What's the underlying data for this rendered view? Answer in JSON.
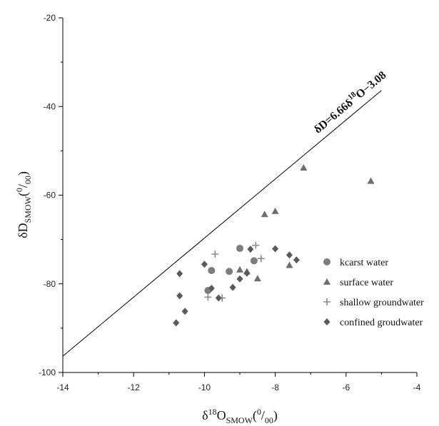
{
  "chart_data": {
    "type": "scatter",
    "xlim": [
      -14,
      -4
    ],
    "ylim": [
      -100,
      -20
    ],
    "x_ticks": [
      -14,
      -12,
      -10,
      -8,
      -6,
      -4
    ],
    "y_ticks": [
      -100,
      -80,
      -60,
      -40,
      -20
    ],
    "x_tick_labels": [
      "-14",
      "-12",
      "-10",
      "-8",
      "-6",
      "-4"
    ],
    "y_tick_labels": [
      "-100",
      "-80",
      "-60",
      "-40",
      "-20"
    ],
    "xlabel": {
      "main": "δ",
      "sup": "18",
      "base": "O",
      "sub": "SMOW",
      "unit_open": "(",
      "unit_sup": "0",
      "unit_slash": "/",
      "unit_sub": "00",
      "unit_close": ")"
    },
    "ylabel": {
      "main": "δD",
      "sub": "SMOW",
      "unit_open": "(",
      "unit_sup": "0",
      "unit_slash": "/",
      "unit_sub": "00",
      "unit_close": ")"
    },
    "grid": false,
    "legend_position": "right",
    "line": {
      "label_main": "δD=6.66δ",
      "label_sup": "18",
      "label_tail": "O−3.08",
      "slope": 6.66,
      "intercept": -3.08,
      "x_range": [
        -14,
        -5
      ]
    },
    "series": [
      {
        "name": "kcarst water",
        "marker": "circle",
        "color": "#7d7d7d",
        "points": [
          [
            -9.0,
            -72.0
          ],
          [
            -8.6,
            -74.8
          ],
          [
            -9.8,
            -77.0
          ],
          [
            -9.3,
            -77.2
          ],
          [
            -9.9,
            -81.5
          ]
        ]
      },
      {
        "name": "surface water",
        "marker": "triangle",
        "color": "#6e6e6e",
        "points": [
          [
            -7.2,
            -53.8
          ],
          [
            -5.3,
            -56.8
          ],
          [
            -8.3,
            -64.3
          ],
          [
            -8.0,
            -63.6
          ],
          [
            -9.0,
            -76.8
          ],
          [
            -8.8,
            -77.2
          ],
          [
            -8.5,
            -78.8
          ],
          [
            -7.6,
            -75.8
          ]
        ]
      },
      {
        "name": "shallow groundwater",
        "marker": "plus",
        "color": "#8a8a8a",
        "points": [
          [
            -9.7,
            -73.3
          ],
          [
            -8.55,
            -71.3
          ],
          [
            -8.4,
            -74.3
          ],
          [
            -9.9,
            -83.0
          ],
          [
            -9.5,
            -83.2
          ]
        ]
      },
      {
        "name": "confined groudwater",
        "marker": "diamond",
        "color": "#5a5a5a",
        "points": [
          [
            -8.7,
            -72.2
          ],
          [
            -8.0,
            -72.1
          ],
          [
            -7.6,
            -73.5
          ],
          [
            -7.4,
            -74.6
          ],
          [
            -10.0,
            -75.6
          ],
          [
            -10.7,
            -77.7
          ],
          [
            -8.8,
            -77.6
          ],
          [
            -9.0,
            -78.9
          ],
          [
            -9.8,
            -81.0
          ],
          [
            -10.7,
            -82.7
          ],
          [
            -9.6,
            -83.2
          ],
          [
            -9.2,
            -80.8
          ],
          [
            -10.55,
            -86.2
          ],
          [
            -10.8,
            -88.8
          ]
        ]
      }
    ]
  }
}
